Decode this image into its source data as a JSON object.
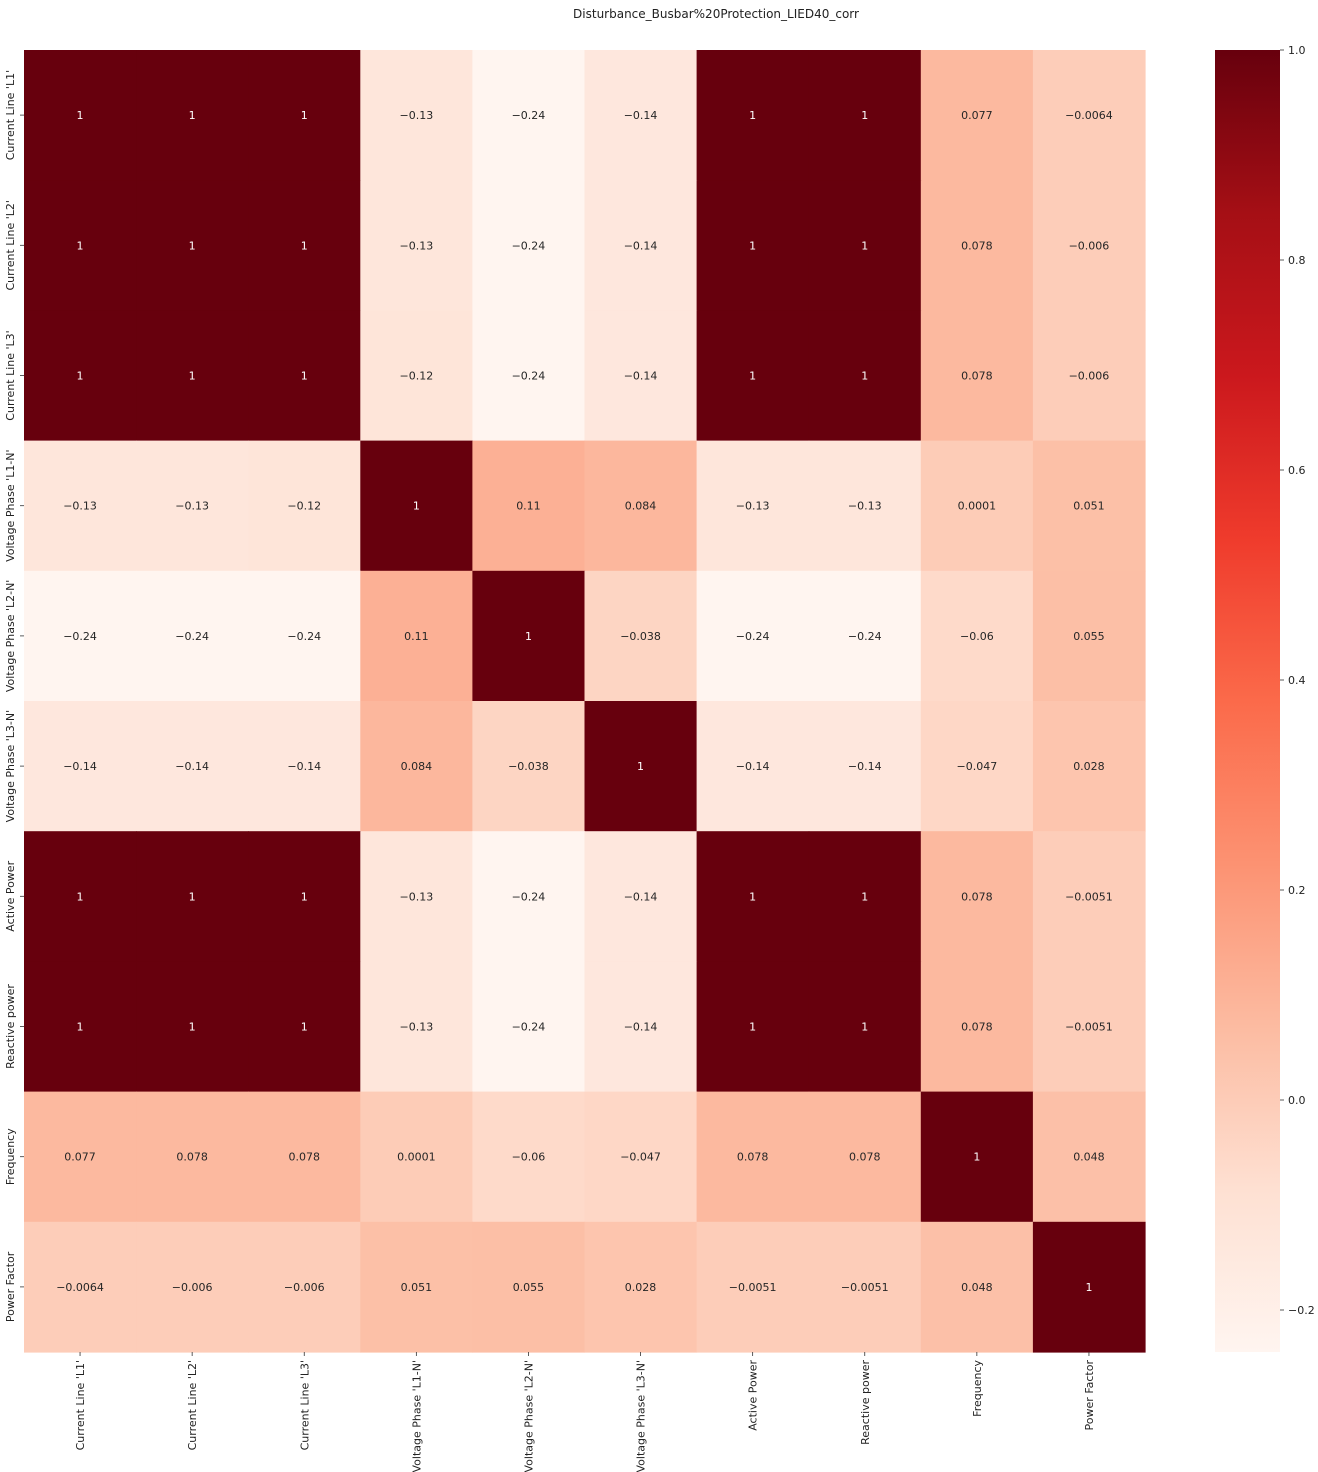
{
  "chart_data": {
    "type": "heatmap",
    "title": "Disturbance_Busbar%20Protection_LIED40_corr",
    "rows": [
      "Current Line 'L1'",
      "Current Line 'L2'",
      "Current Line 'L3'",
      "Voltage Phase 'L1-N'",
      "Voltage Phase 'L2-N'",
      "Voltage Phase 'L3-N'",
      "Active Power",
      "Reactive power",
      "Frequency",
      "Power Factor"
    ],
    "columns": [
      "Current Line 'L1'",
      "Current Line 'L2'",
      "Current Line 'L3'",
      "Voltage Phase 'L1-N'",
      "Voltage Phase 'L2-N'",
      "Voltage Phase 'L3-N'",
      "Active Power",
      "Reactive power",
      "Frequency",
      "Power Factor"
    ],
    "values": [
      [
        1,
        1,
        1,
        -0.13,
        -0.24,
        -0.14,
        1,
        1,
        0.077,
        -0.0064
      ],
      [
        1,
        1,
        1,
        -0.13,
        -0.24,
        -0.14,
        1,
        1,
        0.078,
        -0.006
      ],
      [
        1,
        1,
        1,
        -0.12,
        -0.24,
        -0.14,
        1,
        1,
        0.078,
        -0.006
      ],
      [
        -0.13,
        -0.13,
        -0.12,
        1,
        0.11,
        0.084,
        -0.13,
        -0.13,
        0.0001,
        0.051
      ],
      [
        -0.24,
        -0.24,
        -0.24,
        0.11,
        1,
        -0.038,
        -0.24,
        -0.24,
        -0.06,
        0.055
      ],
      [
        -0.14,
        -0.14,
        -0.14,
        0.084,
        -0.038,
        1,
        -0.14,
        -0.14,
        -0.047,
        0.028
      ],
      [
        1,
        1,
        1,
        -0.13,
        -0.24,
        -0.14,
        1,
        1,
        0.078,
        -0.0051
      ],
      [
        1,
        1,
        1,
        -0.13,
        -0.24,
        -0.14,
        1,
        1,
        0.078,
        -0.0051
      ],
      [
        0.077,
        0.078,
        0.078,
        0.0001,
        -0.06,
        -0.047,
        0.078,
        0.078,
        1,
        0.048
      ],
      [
        -0.0064,
        -0.006,
        -0.006,
        0.051,
        0.055,
        0.028,
        -0.0051,
        -0.0051,
        0.048,
        1
      ]
    ],
    "colorbar": {
      "range": [
        -0.24,
        1.0
      ],
      "ticks": [
        -0.2,
        0.0,
        0.2,
        0.4,
        0.6,
        0.8,
        1.0
      ],
      "tick_labels": [
        "−0.2",
        "0.0",
        "0.2",
        "0.4",
        "0.6",
        "0.8",
        "1.0"
      ],
      "colormap": "Reds",
      "colors": [
        "#fff5f0",
        "#fee0d2",
        "#fcbba1",
        "#fc9272",
        "#fb6a4a",
        "#ef3b2c",
        "#cb181d",
        "#a50f15",
        "#67000d"
      ]
    }
  }
}
